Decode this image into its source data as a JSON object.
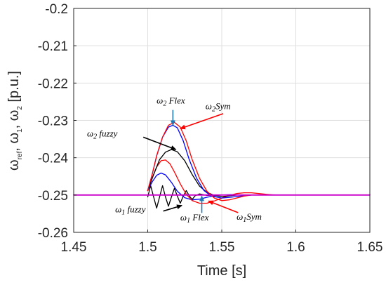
{
  "chart_data": {
    "type": "line",
    "title": "",
    "xlabel": "Time [s]",
    "ylabel_parts": {
      "omega": "ω",
      "sub_ref": "ref",
      "sep1": ", ω",
      "sub_1": "1",
      "sep2": ", ω",
      "sub_2": "2",
      "unit": " [p.u.]"
    },
    "xlim": [
      1.45,
      1.65
    ],
    "ylim": [
      -0.26,
      -0.2
    ],
    "xticks": [
      "1.45",
      "1.5",
      "1.55",
      "1.6",
      "1.65"
    ],
    "xtick_values": [
      1.45,
      1.5,
      1.55,
      1.6,
      1.65
    ],
    "yticks": [
      "-0.2",
      "-0.21",
      "-0.22",
      "-0.23",
      "-0.24",
      "-0.25",
      "-0.26"
    ],
    "ytick_values": [
      -0.2,
      -0.21,
      -0.22,
      -0.23,
      -0.24,
      -0.25,
      -0.26
    ],
    "grid": true,
    "colors": {
      "reference": "#cc00cc",
      "symmetrical": "#ff0000",
      "flex": "#0000ff",
      "fuzzy": "#000000",
      "flex_arrow": "#1f77b4",
      "sym_arrow": "#ff0000",
      "fuzzy_arrow": "#000000"
    },
    "series": [
      {
        "key": "ref",
        "color": "#cc00cc",
        "x": [
          1.45,
          1.65
        ],
        "y": [
          -0.25,
          -0.25
        ]
      },
      {
        "key": "w2_sym",
        "color": "#ff0000",
        "x": [
          1.5,
          1.503,
          1.506,
          1.51,
          1.514,
          1.518,
          1.522,
          1.526,
          1.53,
          1.535,
          1.54,
          1.545,
          1.55,
          1.555,
          1.56,
          1.565,
          1.57,
          1.58,
          1.59,
          1.6
        ],
        "y": [
          -0.2488,
          -0.2445,
          -0.2395,
          -0.2345,
          -0.2313,
          -0.2305,
          -0.2318,
          -0.2355,
          -0.2405,
          -0.2455,
          -0.249,
          -0.2508,
          -0.2515,
          -0.2513,
          -0.2508,
          -0.2503,
          -0.25,
          -0.2499,
          -0.25,
          -0.25
        ]
      },
      {
        "key": "w2_flex",
        "color": "#0000ff",
        "x": [
          1.5,
          1.503,
          1.506,
          1.51,
          1.514,
          1.517,
          1.52,
          1.524,
          1.528,
          1.533,
          1.538,
          1.543,
          1.55,
          1.556,
          1.562,
          1.57,
          1.58,
          1.6
        ],
        "y": [
          -0.2488,
          -0.2445,
          -0.2395,
          -0.2345,
          -0.2318,
          -0.2313,
          -0.232,
          -0.2355,
          -0.2405,
          -0.2455,
          -0.2488,
          -0.2503,
          -0.2508,
          -0.2506,
          -0.2503,
          -0.25,
          -0.25,
          -0.25
        ]
      },
      {
        "key": "w2_fuzzy",
        "color": "#000000",
        "x": [
          1.5,
          1.504,
          1.508,
          1.512,
          1.516,
          1.52,
          1.525,
          1.53,
          1.535,
          1.54,
          1.545,
          1.55,
          1.556,
          1.56,
          1.57,
          1.6
        ],
        "y": [
          -0.2488,
          -0.2445,
          -0.2405,
          -0.2385,
          -0.2378,
          -0.2384,
          -0.2408,
          -0.2445,
          -0.2476,
          -0.2493,
          -0.2501,
          -0.2504,
          -0.2502,
          -0.25,
          -0.25,
          -0.25
        ]
      },
      {
        "key": "w1_sym",
        "color": "#ff0000",
        "x": [
          1.5,
          1.503,
          1.506,
          1.509,
          1.512,
          1.515,
          1.518,
          1.522,
          1.526,
          1.53,
          1.535,
          1.54,
          1.545,
          1.55,
          1.555,
          1.56,
          1.565,
          1.57,
          1.575,
          1.58,
          1.585,
          1.59,
          1.6
        ],
        "y": [
          -0.2488,
          -0.2455,
          -0.2425,
          -0.2408,
          -0.2406,
          -0.2416,
          -0.2438,
          -0.247,
          -0.2498,
          -0.2515,
          -0.2522,
          -0.2522,
          -0.2516,
          -0.2508,
          -0.2501,
          -0.2496,
          -0.2494,
          -0.2494,
          -0.2496,
          -0.2498,
          -0.25,
          -0.25,
          -0.25
        ]
      },
      {
        "key": "w1_flex",
        "color": "#0000ff",
        "x": [
          1.5,
          1.503,
          1.506,
          1.509,
          1.512,
          1.516,
          1.52,
          1.525,
          1.53,
          1.535,
          1.54,
          1.545,
          1.55,
          1.556,
          1.565,
          1.575,
          1.6
        ],
        "y": [
          -0.2488,
          -0.2465,
          -0.2447,
          -0.2441,
          -0.2446,
          -0.2466,
          -0.249,
          -0.2507,
          -0.2513,
          -0.2511,
          -0.2506,
          -0.2502,
          -0.25,
          -0.2499,
          -0.25,
          -0.25,
          -0.25
        ]
      },
      {
        "key": "w1_fuzzy",
        "color": "#000000",
        "x": [
          1.5,
          1.502,
          1.504,
          1.506,
          1.508,
          1.51,
          1.512,
          1.514,
          1.516,
          1.518,
          1.52,
          1.522,
          1.524,
          1.526,
          1.528,
          1.53,
          1.532,
          1.535,
          1.54,
          1.55,
          1.6
        ],
        "y": [
          -0.2505,
          -0.2475,
          -0.2505,
          -0.2535,
          -0.2505,
          -0.2475,
          -0.2505,
          -0.253,
          -0.2505,
          -0.2482,
          -0.2503,
          -0.2522,
          -0.2503,
          -0.2488,
          -0.2502,
          -0.2512,
          -0.2502,
          -0.2497,
          -0.2501,
          -0.25,
          -0.25
        ]
      }
    ],
    "annotations": [
      {
        "name": "w2-flex-label",
        "w": "ω",
        "sub": "2",
        "rest": " Flex",
        "x": 1.506,
        "y": -0.2255,
        "arrow_from": [
          1.517,
          -0.2272
        ],
        "arrow_to": [
          1.517,
          -0.2313
        ],
        "arrow_color": "#1f77b4"
      },
      {
        "name": "w2-sym-label",
        "w": "ω",
        "sub": "2",
        "rest": "Sym",
        "x": 1.539,
        "y": -0.227,
        "arrow_from": [
          1.551,
          -0.2282
        ],
        "arrow_to": [
          1.522,
          -0.2322
        ],
        "arrow_color": "#ff0000"
      },
      {
        "name": "w2-fuzzy-label",
        "w": "ω",
        "sub": "2",
        "rest": " fuzzy",
        "x": 1.459,
        "y": -0.2343,
        "arrow_from": [
          1.497,
          -0.2345
        ],
        "arrow_to": [
          1.519,
          -0.2378
        ],
        "arrow_color": "#000000"
      },
      {
        "name": "w1-fuzzy-label",
        "w": "ω",
        "sub": "1",
        "rest": " fuzzy",
        "x": 1.478,
        "y": -0.2546,
        "arrow_from": [
          1.5105,
          -0.2543
        ],
        "arrow_to": [
          1.523,
          -0.2528
        ],
        "arrow_color": "#000000"
      },
      {
        "name": "w1-flex-label",
        "w": "ω",
        "sub": "1",
        "rest": " Flex",
        "x": 1.522,
        "y": -0.2568,
        "arrow_from": [
          1.5365,
          -0.2548
        ],
        "arrow_to": [
          1.5365,
          -0.2503
        ],
        "arrow_color": "#1f77b4"
      },
      {
        "name": "w1-sym-label",
        "w": "ω",
        "sub": "1",
        "rest": "Sym",
        "x": 1.56,
        "y": -0.2566,
        "arrow_from": [
          1.561,
          -0.2547
        ],
        "arrow_to": [
          1.541,
          -0.2516
        ],
        "arrow_color": "#ff0000"
      }
    ]
  }
}
